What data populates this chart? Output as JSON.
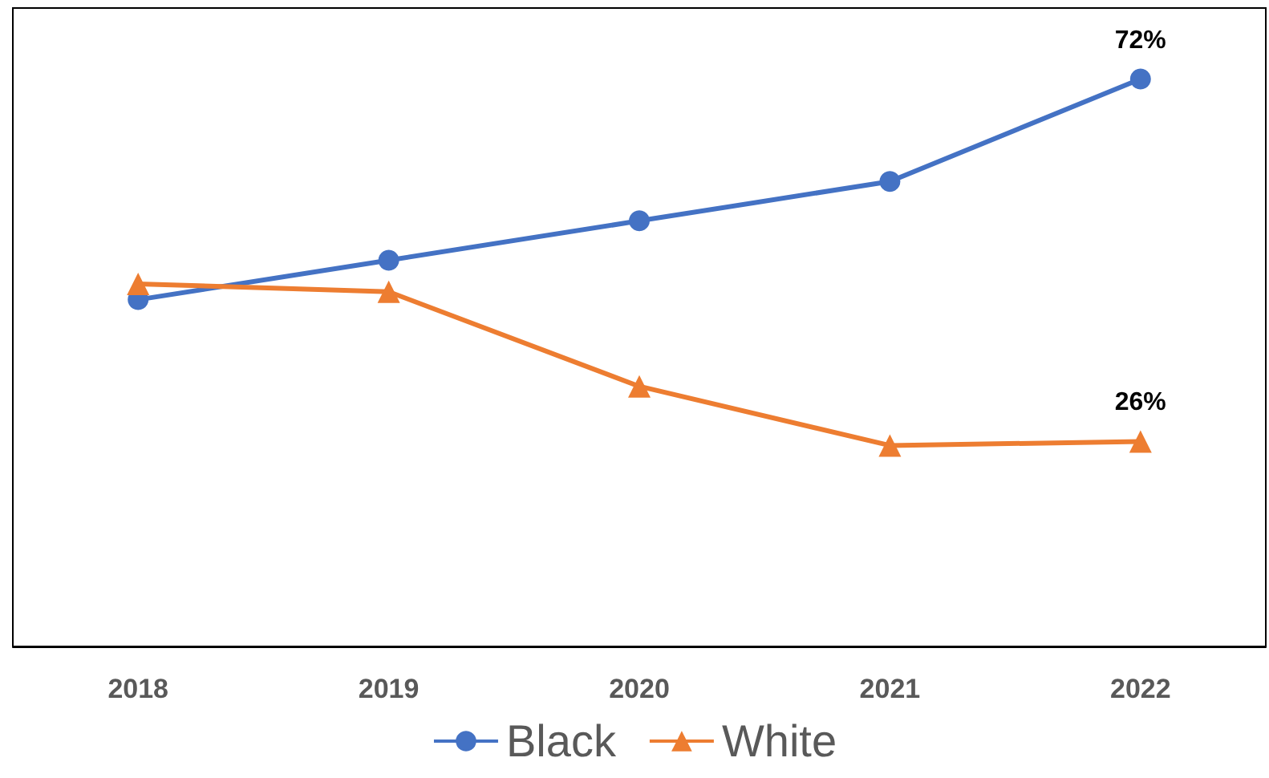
{
  "chart_data": {
    "type": "line",
    "categories": [
      "2018",
      "2019",
      "2020",
      "2021",
      "2022"
    ],
    "series": [
      {
        "name": "Black",
        "color": "#4472c4",
        "marker": "circle",
        "values": [
          44,
          49,
          54,
          59,
          72
        ],
        "value_labels": [
          null,
          null,
          null,
          null,
          "72%"
        ]
      },
      {
        "name": "White",
        "color": "#ed7d31",
        "marker": "triangle",
        "values": [
          46,
          45,
          33,
          25.5,
          26
        ],
        "value_labels": [
          null,
          null,
          null,
          null,
          "26%"
        ]
      }
    ],
    "ylim": [
      0,
      81
    ],
    "tick_labels": "x",
    "grid": false,
    "legend": "bottom"
  }
}
